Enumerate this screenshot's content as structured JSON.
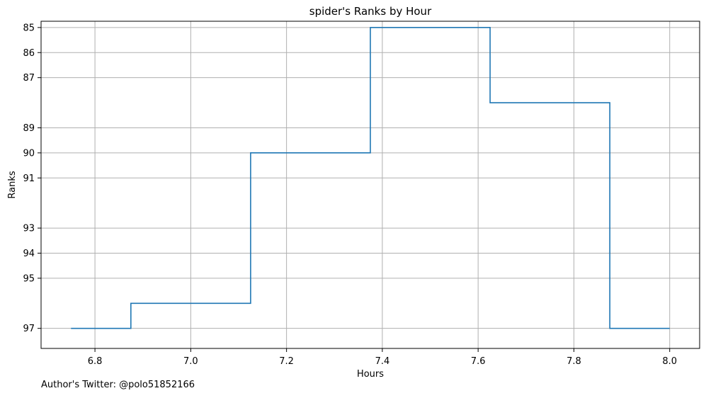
{
  "chart_data": {
    "type": "line",
    "title": "spider's Ranks by Hour",
    "xlabel": "Hours",
    "ylabel": "Ranks",
    "x": [
      6.75,
      7.0,
      7.25,
      7.5,
      7.75,
      8.0
    ],
    "series": [
      {
        "values": [
          97,
          96,
          90,
          85,
          88,
          97
        ]
      }
    ],
    "step": "mid",
    "xlim": [
      6.6875,
      8.0625
    ],
    "ylim": [
      97.8,
      84.75
    ],
    "y_inverted": true,
    "x_ticks": [
      6.8,
      7.0,
      7.2,
      7.4,
      7.6,
      7.8,
      8.0
    ],
    "x_tick_labels": [
      "6.8",
      "7.0",
      "7.2",
      "7.4",
      "7.6",
      "7.8",
      "8.0"
    ],
    "y_ticks": [
      85,
      86,
      87,
      89,
      90,
      91,
      93,
      94,
      95,
      97
    ],
    "y_tick_labels": [
      "85",
      "86",
      "87",
      "89",
      "90",
      "91",
      "93",
      "94",
      "95",
      "97"
    ],
    "grid": true,
    "line_color": "#1f77b4",
    "grid_color": "#b0b0b0"
  },
  "footer": {
    "text": "Author's Twitter: @polo51852166"
  }
}
